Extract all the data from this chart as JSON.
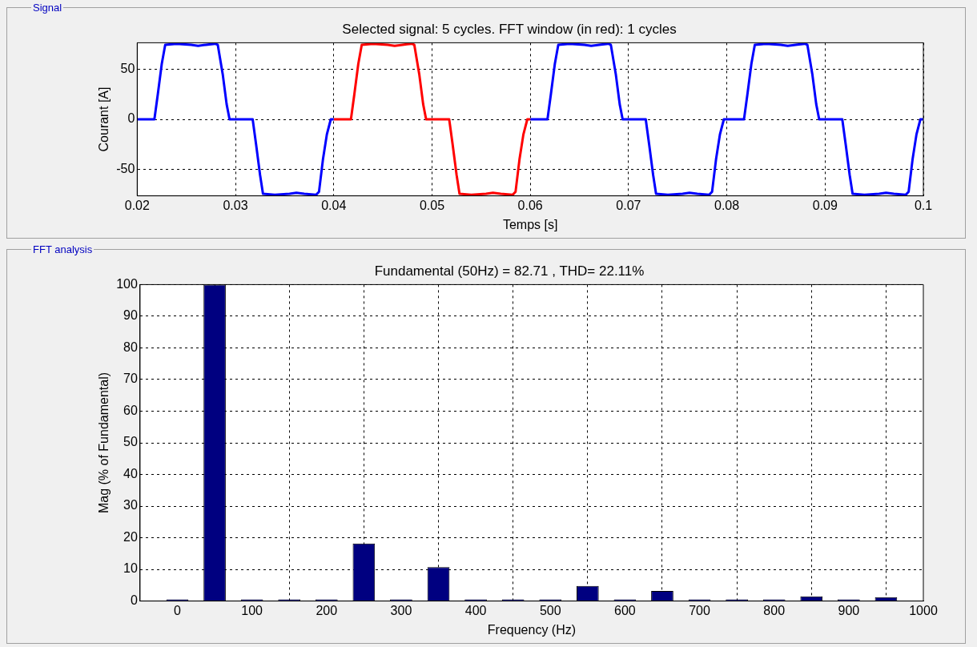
{
  "chart_data": [
    {
      "type": "line",
      "title": "Selected signal: 5 cycles. FFT window (in red): 1 cycles",
      "xlabel": "Temps [s]",
      "ylabel": "Courant [A]",
      "annotations": [
        "Signal"
      ],
      "xlim": [
        0.02,
        0.1
      ],
      "xticks": [
        0.02,
        0.03,
        0.04,
        0.05,
        0.06,
        0.07,
        0.08,
        0.09,
        0.1
      ],
      "ylim": [
        -76,
        76
      ],
      "yticks": [
        -50,
        0,
        50
      ],
      "grid": true,
      "legend": false,
      "series": [
        {
          "color": "#0000ff",
          "x": [
            0.02,
            0.02175,
            0.0221,
            0.0225,
            0.02285,
            0.024,
            0.0255,
            0.0262,
            0.027,
            0.0279,
            0.0282,
            0.0287,
            0.0291,
            0.0294,
            0.03175,
            0.0321,
            0.0325,
            0.0328,
            0.034,
            0.0355,
            0.0362,
            0.037,
            0.0382,
            0.0385,
            0.0389,
            0.0393,
            0.0397,
            0.04
          ],
          "values": [
            0,
            0,
            25,
            55,
            74,
            75,
            74,
            73,
            74,
            75,
            74,
            45,
            15,
            0,
            0,
            -25,
            -55,
            -74,
            -75,
            -74,
            -73,
            -74,
            -75,
            -72,
            -40,
            -15,
            0,
            0
          ]
        },
        {
          "color": "#ff0000",
          "x": [
            0.04,
            0.04175,
            0.0421,
            0.0425,
            0.04285,
            0.044,
            0.0455,
            0.0462,
            0.047,
            0.0479,
            0.0482,
            0.0487,
            0.0491,
            0.0494,
            0.05175,
            0.0521,
            0.0525,
            0.0528,
            0.054,
            0.0555,
            0.0562,
            0.057,
            0.0582,
            0.0585,
            0.0589,
            0.0593,
            0.0597,
            0.06
          ],
          "values": [
            0,
            0,
            25,
            55,
            74,
            75,
            74,
            73,
            74,
            75,
            74,
            45,
            15,
            0,
            0,
            -25,
            -55,
            -74,
            -75,
            -74,
            -73,
            -74,
            -75,
            -72,
            -40,
            -15,
            0,
            0
          ]
        },
        {
          "color": "#0000ff",
          "x": [
            0.06,
            0.06175,
            0.0621,
            0.0625,
            0.06285,
            0.064,
            0.0655,
            0.0662,
            0.067,
            0.0679,
            0.0682,
            0.0687,
            0.0691,
            0.0694,
            0.07175,
            0.0721,
            0.0725,
            0.0728,
            0.074,
            0.0755,
            0.0762,
            0.077,
            0.0782,
            0.0785,
            0.0789,
            0.0793,
            0.0797,
            0.08,
            0.08175,
            0.0821,
            0.0825,
            0.08285,
            0.084,
            0.0855,
            0.0862,
            0.087,
            0.0879,
            0.0882,
            0.0887,
            0.0891,
            0.0894,
            0.09175,
            0.0921,
            0.0925,
            0.0928,
            0.094,
            0.0955,
            0.0962,
            0.097,
            0.0982,
            0.0985,
            0.0989,
            0.0993,
            0.0997,
            0.1
          ],
          "values": [
            0,
            0,
            25,
            55,
            74,
            75,
            74,
            73,
            74,
            75,
            74,
            45,
            15,
            0,
            0,
            -25,
            -55,
            -74,
            -75,
            -74,
            -73,
            -74,
            -75,
            -72,
            -40,
            -15,
            0,
            0,
            0,
            25,
            55,
            74,
            75,
            74,
            73,
            74,
            75,
            74,
            45,
            15,
            0,
            0,
            -25,
            -55,
            -74,
            -75,
            -74,
            -73,
            -74,
            -75,
            -72,
            -40,
            -15,
            0,
            0
          ]
        }
      ]
    },
    {
      "type": "bar",
      "title": "Fundamental (50Hz) = 82.71 , THD= 22.11%",
      "xlabel": "Frequency (Hz)",
      "ylabel": "Mag (% of Fundamental)",
      "annotations": [
        "FFT analysis"
      ],
      "xlim": [
        -50,
        1000
      ],
      "xticks": [
        0,
        100,
        200,
        300,
        400,
        500,
        600,
        700,
        800,
        900,
        1000
      ],
      "ylim": [
        0,
        100
      ],
      "yticks": [
        0,
        10,
        20,
        30,
        40,
        50,
        60,
        70,
        80,
        90,
        100
      ],
      "grid": true,
      "legend": false,
      "x": [
        0,
        50,
        100,
        150,
        200,
        250,
        300,
        350,
        400,
        450,
        500,
        550,
        600,
        650,
        700,
        750,
        800,
        850,
        900,
        950
      ],
      "series": [
        {
          "color": "#000080",
          "values": [
            0.5,
            100,
            0.5,
            0.5,
            0.5,
            18.2,
            0.5,
            10.7,
            0.5,
            0.5,
            0.5,
            4.8,
            0.5,
            3.2,
            0.5,
            0.5,
            0.5,
            1.5,
            0.5,
            1.2
          ]
        }
      ]
    }
  ]
}
